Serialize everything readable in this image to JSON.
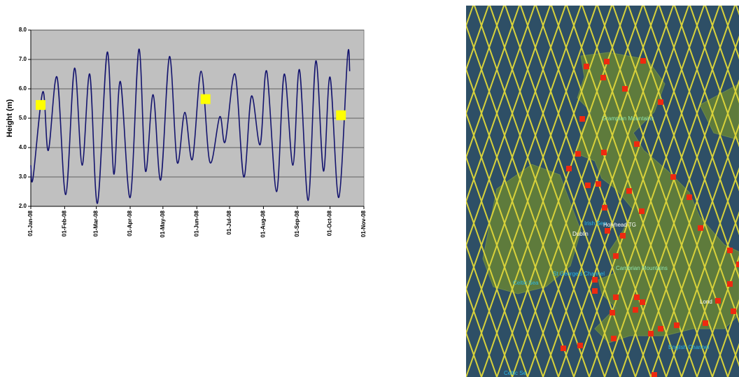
{
  "chart_data": {
    "type": "line",
    "y_label": "Height (m)",
    "x": [
      "2008-01-01",
      "2008-01-03",
      "2008-01-12",
      "2008-01-17",
      "2008-01-25",
      "2008-02-02",
      "2008-02-10",
      "2008-02-17",
      "2008-02-24",
      "2008-03-02",
      "2008-03-11",
      "2008-03-17",
      "2008-03-23",
      "2008-04-01",
      "2008-04-09",
      "2008-04-15",
      "2008-04-22",
      "2008-04-29",
      "2008-05-07",
      "2008-05-14",
      "2008-05-21",
      "2008-05-28",
      "2008-06-05",
      "2008-06-13",
      "2008-06-22",
      "2008-06-27",
      "2008-07-06",
      "2008-07-14",
      "2008-07-21",
      "2008-07-29",
      "2008-08-04",
      "2008-08-13",
      "2008-08-20",
      "2008-08-28",
      "2008-09-03",
      "2008-09-11",
      "2008-09-18",
      "2008-09-25",
      "2008-10-01",
      "2008-10-09",
      "2008-10-17",
      "2008-10-19"
    ],
    "series": [
      {
        "color": "#14146e",
        "values": [
          3.4,
          2.95,
          5.9,
          3.9,
          6.4,
          2.4,
          6.7,
          3.4,
          6.5,
          2.1,
          7.25,
          3.1,
          6.25,
          2.3,
          7.35,
          3.2,
          5.8,
          2.9,
          7.1,
          3.5,
          5.2,
          3.6,
          6.6,
          3.5,
          5.05,
          4.2,
          6.5,
          3.0,
          5.75,
          4.1,
          6.6,
          2.5,
          6.5,
          3.4,
          6.65,
          2.2,
          6.95,
          3.2,
          6.4,
          2.3,
          7.1,
          6.6
        ]
      }
    ],
    "markers": {
      "color": "#ffff00",
      "x": [
        "2008-01-10",
        "2008-06-09",
        "2008-10-11"
      ],
      "values": [
        5.45,
        5.65,
        5.1
      ]
    },
    "xlim": [
      "2008-01-01",
      "2008-11-01"
    ],
    "xticks": [
      {
        "value": "2008-01-01",
        "label": "01-Jan-08"
      },
      {
        "value": "2008-02-01",
        "label": "01-Feb-08"
      },
      {
        "value": "2008-03-01",
        "label": "01-Mar-08"
      },
      {
        "value": "2008-04-01",
        "label": "01-Apr-08"
      },
      {
        "value": "2008-05-01",
        "label": "01-May-08"
      },
      {
        "value": "2008-06-01",
        "label": "01-Jun-08"
      },
      {
        "value": "2008-07-01",
        "label": "01-Jul-08"
      },
      {
        "value": "2008-08-01",
        "label": "01-Aug-08"
      },
      {
        "value": "2008-09-01",
        "label": "01-Sep-08"
      },
      {
        "value": "2008-10-01",
        "label": "01-Oct-08"
      },
      {
        "value": "2008-11-01",
        "label": "01-Nov-08"
      }
    ],
    "ylim": [
      2,
      8
    ],
    "yticks": [
      {
        "value": 2,
        "label": "2.0"
      },
      {
        "value": 3,
        "label": "3.0"
      },
      {
        "value": 4,
        "label": "4.0"
      },
      {
        "value": 5,
        "label": "5.0"
      },
      {
        "value": 6,
        "label": "6.0"
      },
      {
        "value": 7,
        "label": "7.0"
      },
      {
        "value": 8,
        "label": "8.0"
      }
    ],
    "grid": true
  },
  "map": {
    "labels": [
      "Grampian Mountains",
      "Irish Sea",
      "Dublin",
      "Holyhead TG",
      "Cambrian Mountains",
      "St George's Channel",
      "Celtic Sea",
      "Lond",
      "English Channel",
      "Celtic Se"
    ]
  }
}
